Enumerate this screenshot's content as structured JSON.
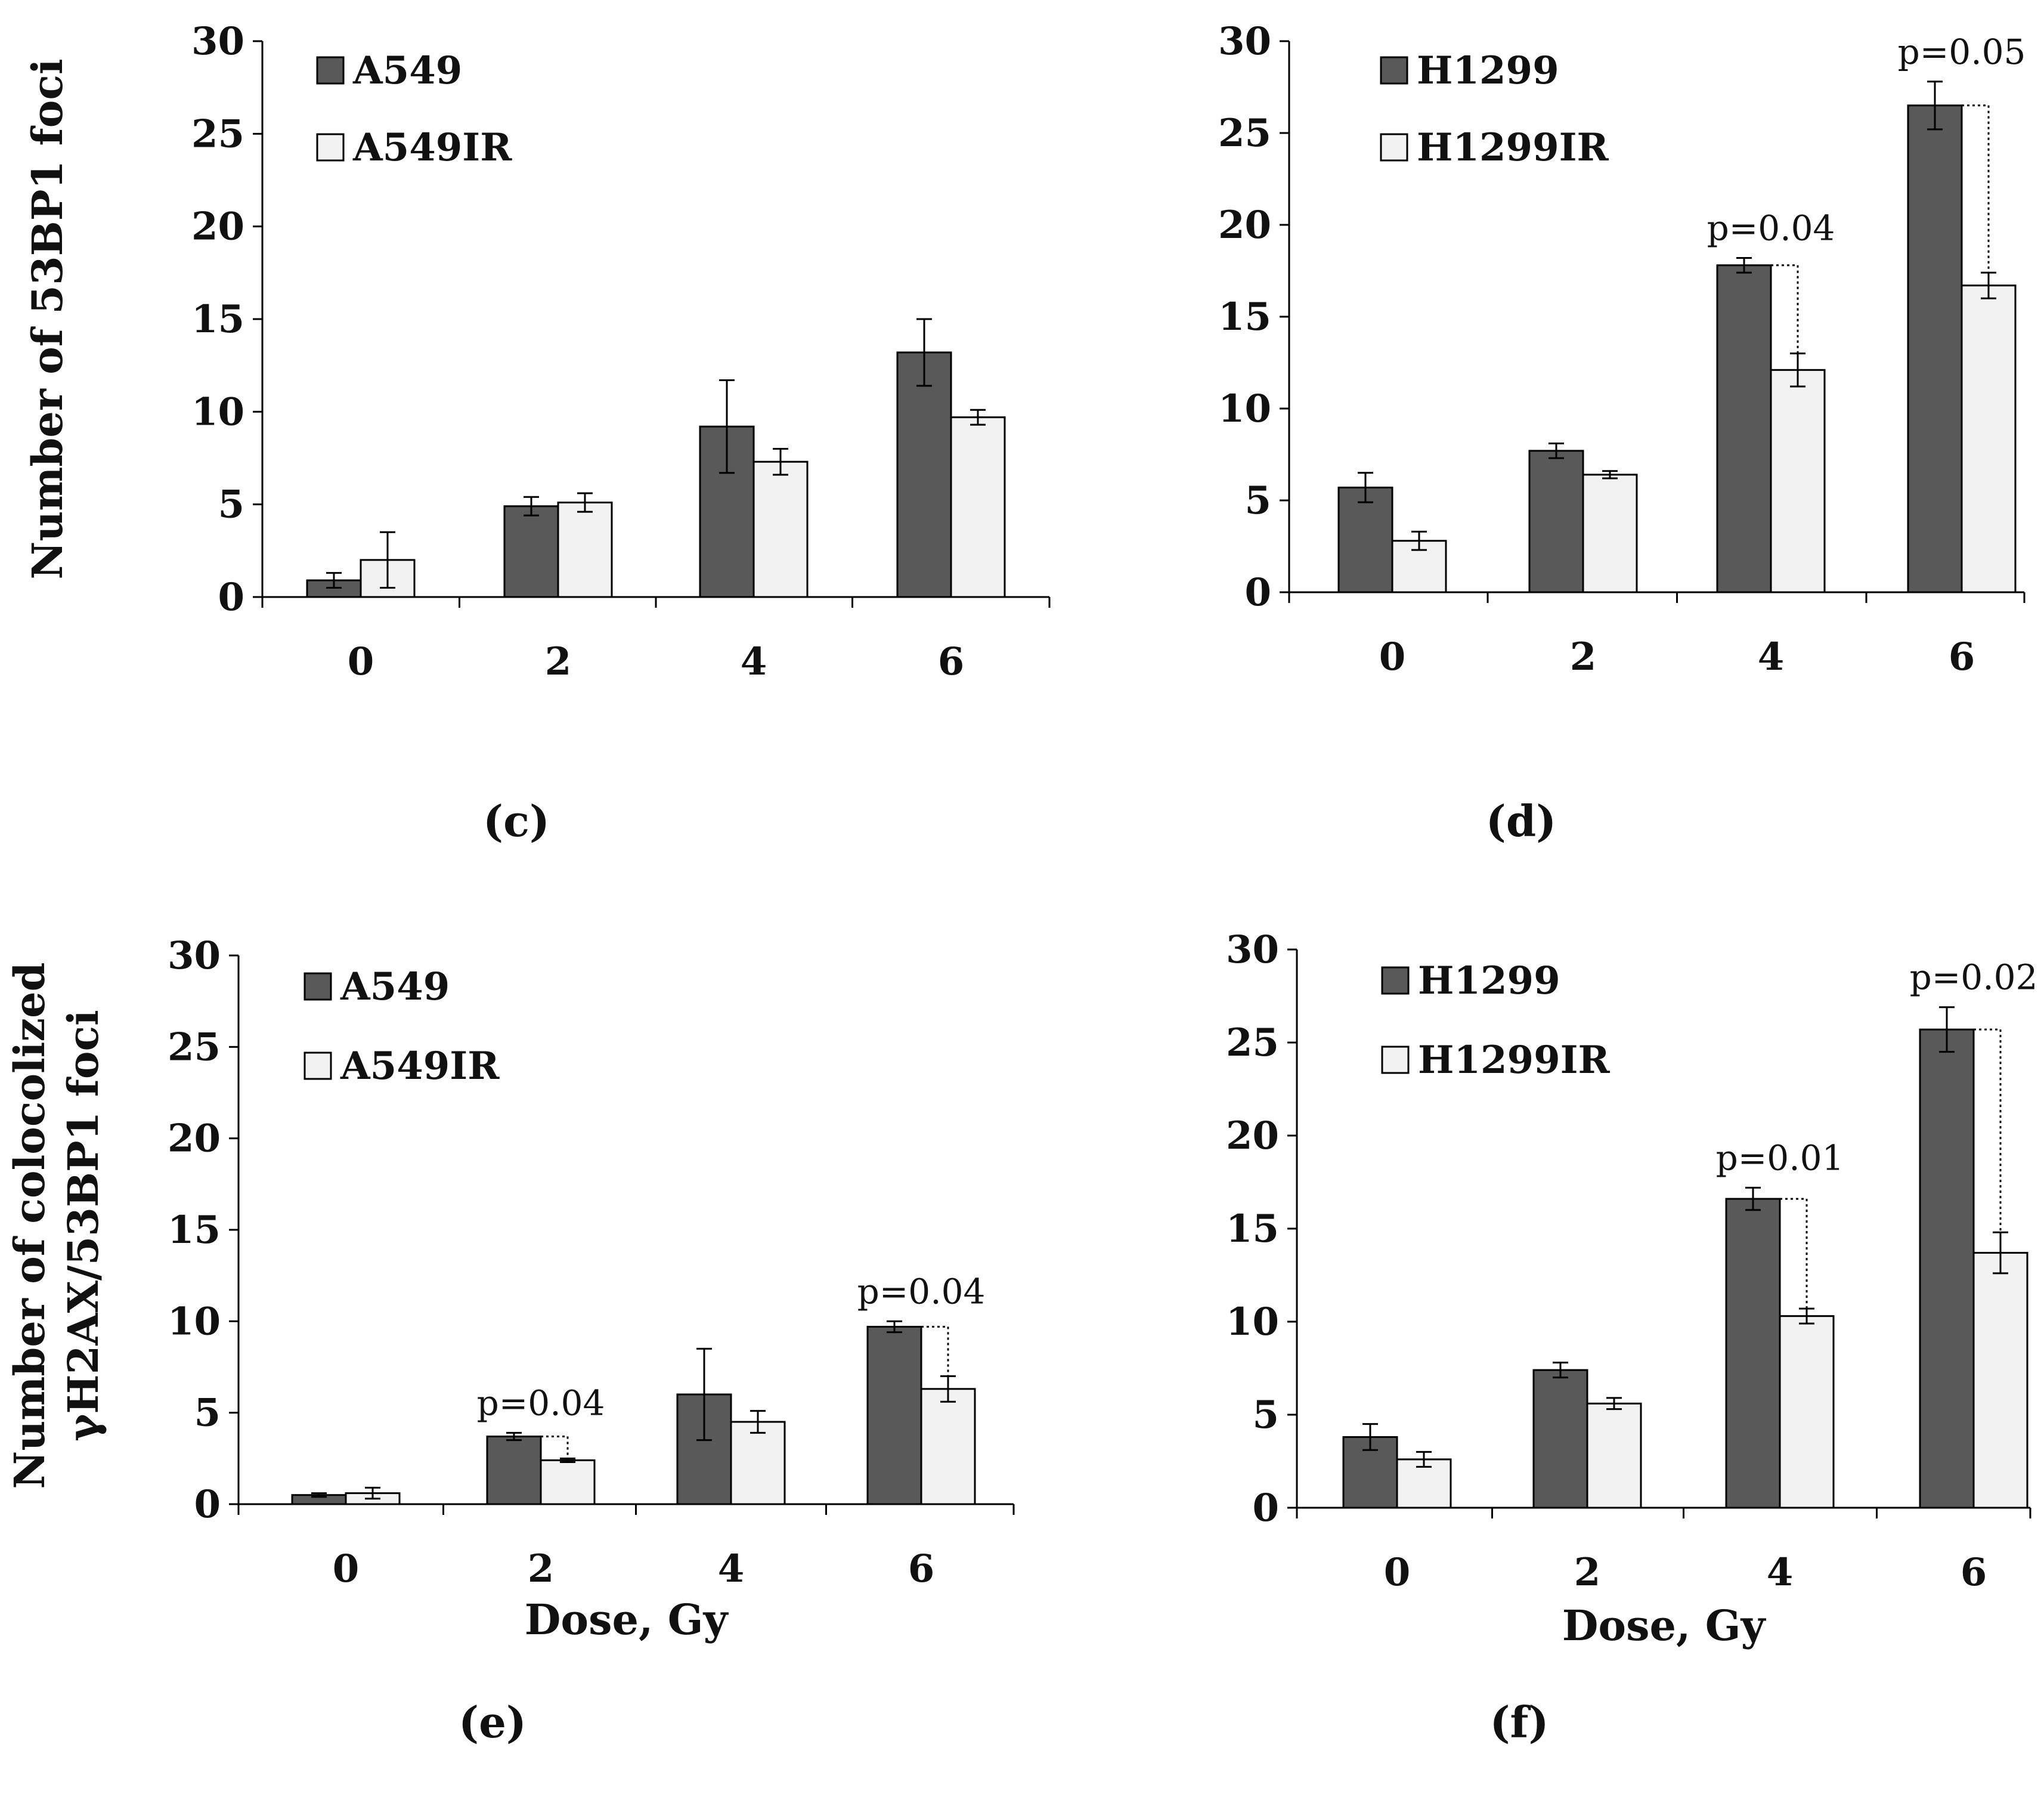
{
  "chart_data": [
    {
      "id": "c",
      "type": "bar",
      "panel_label": "(c)",
      "categories": [
        "0",
        "2",
        "4",
        "6"
      ],
      "series": [
        {
          "name": "A549",
          "values": [
            0.9,
            4.9,
            9.2,
            13.2
          ],
          "errors": [
            0.4,
            0.5,
            2.5,
            1.8
          ]
        },
        {
          "name": "A549IR",
          "values": [
            2.0,
            5.1,
            7.3,
            9.7
          ],
          "errors": [
            1.5,
            0.5,
            0.7,
            0.4
          ]
        }
      ],
      "pvalues": [],
      "ylim": [
        0,
        30
      ],
      "yticks": [
        "0",
        "5",
        "10",
        "15",
        "20",
        "25",
        "30"
      ],
      "xlabel": "",
      "ylabel": [
        "Number of  53BP1 foci"
      ]
    },
    {
      "id": "d",
      "type": "bar",
      "panel_label": "(d)",
      "categories": [
        "0",
        "2",
        "4",
        "6"
      ],
      "series": [
        {
          "name": "H1299",
          "values": [
            5.7,
            7.7,
            17.8,
            26.5
          ],
          "errors": [
            0.8,
            0.4,
            0.4,
            1.3
          ]
        },
        {
          "name": "H1299IR",
          "values": [
            2.8,
            6.4,
            12.1,
            16.7
          ],
          "errors": [
            0.5,
            0.2,
            0.9,
            0.7
          ]
        }
      ],
      "pvalues": [
        {
          "category_index": 2,
          "label": "p=0.04"
        },
        {
          "category_index": 3,
          "label": "p=0.05"
        }
      ],
      "ylim": [
        0,
        30
      ],
      "yticks": [
        "0",
        "5",
        "10",
        "15",
        "20",
        "25",
        "30"
      ],
      "xlabel": "",
      "ylabel": []
    },
    {
      "id": "e",
      "type": "bar",
      "panel_label": "(e)",
      "categories": [
        "0",
        "2",
        "4",
        "6"
      ],
      "series": [
        {
          "name": "A549",
          "values": [
            0.5,
            3.7,
            6.0,
            9.7
          ],
          "errors": [
            0.1,
            0.2,
            2.5,
            0.3
          ]
        },
        {
          "name": "A549IR",
          "values": [
            0.6,
            2.4,
            4.5,
            6.3
          ],
          "errors": [
            0.3,
            0.1,
            0.6,
            0.7
          ]
        }
      ],
      "pvalues": [
        {
          "category_index": 1,
          "label": "p=0.04"
        },
        {
          "category_index": 3,
          "label": "p=0.04"
        }
      ],
      "ylim": [
        0,
        30
      ],
      "yticks": [
        "0",
        "5",
        "10",
        "15",
        "20",
        "25",
        "30"
      ],
      "xlabel": "Dose, Gy",
      "ylabel": [
        "Number of colocolized",
        "γH2AX/53BP1 foci"
      ]
    },
    {
      "id": "f",
      "type": "bar",
      "panel_label": "(f)",
      "categories": [
        "0",
        "2",
        "4",
        "6"
      ],
      "series": [
        {
          "name": "H1299",
          "values": [
            3.8,
            7.4,
            16.6,
            25.7
          ],
          "errors": [
            0.7,
            0.4,
            0.6,
            1.2
          ]
        },
        {
          "name": "H1299IR",
          "values": [
            2.6,
            5.6,
            10.3,
            13.7
          ],
          "errors": [
            0.4,
            0.3,
            0.4,
            1.1
          ]
        }
      ],
      "pvalues": [
        {
          "category_index": 2,
          "label": "p=0.01"
        },
        {
          "category_index": 3,
          "label": "p=0.02"
        }
      ],
      "ylim": [
        0,
        30
      ],
      "yticks": [
        "0",
        "5",
        "10",
        "15",
        "20",
        "25",
        "30"
      ],
      "xlabel": "Dose, Gy",
      "ylabel": []
    }
  ],
  "colors": {
    "series_dark": "#595959",
    "series_light": "#f2f2f2",
    "stroke": "#000000"
  }
}
